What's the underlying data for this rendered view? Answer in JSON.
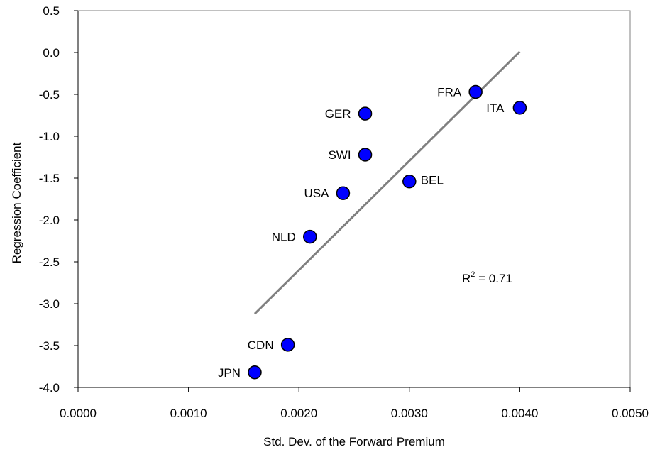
{
  "chart_data": {
    "type": "scatter",
    "title": "",
    "xlabel": "Std. Dev. of the Forward Premium",
    "ylabel": "Regression Coefficient",
    "xlim": [
      0.0,
      0.005
    ],
    "ylim": [
      -4.0,
      0.5
    ],
    "x_ticks": [
      "0.0000",
      "0.0010",
      "0.0020",
      "0.0030",
      "0.0040",
      "0.0050"
    ],
    "y_ticks": [
      "0.5",
      "0.0",
      "-0.5",
      "-1.0",
      "-1.5",
      "-2.0",
      "-2.5",
      "-3.0",
      "-3.5",
      "-4.0"
    ],
    "grid": false,
    "legend": "none",
    "marker_color": "#0000ff",
    "trendline_color": "#808080",
    "points": [
      {
        "label": "FRA",
        "x": 0.0036,
        "y": -0.47
      },
      {
        "label": "ITA",
        "x": 0.004,
        "y": -0.66
      },
      {
        "label": "GER",
        "x": 0.0026,
        "y": -0.73
      },
      {
        "label": "SWI",
        "x": 0.0026,
        "y": -1.22
      },
      {
        "label": "BEL",
        "x": 0.003,
        "y": -1.54
      },
      {
        "label": "USA",
        "x": 0.0024,
        "y": -1.68
      },
      {
        "label": "NLD",
        "x": 0.0021,
        "y": -2.2
      },
      {
        "label": "CDN",
        "x": 0.0019,
        "y": -3.49
      },
      {
        "label": "JPN",
        "x": 0.0016,
        "y": -3.82
      }
    ],
    "trendline": {
      "x": [
        0.0016,
        0.004
      ],
      "y": [
        -3.12,
        0.01
      ]
    },
    "annotation": {
      "base": "R",
      "sup": "2",
      "rest": " = 0.71"
    }
  }
}
